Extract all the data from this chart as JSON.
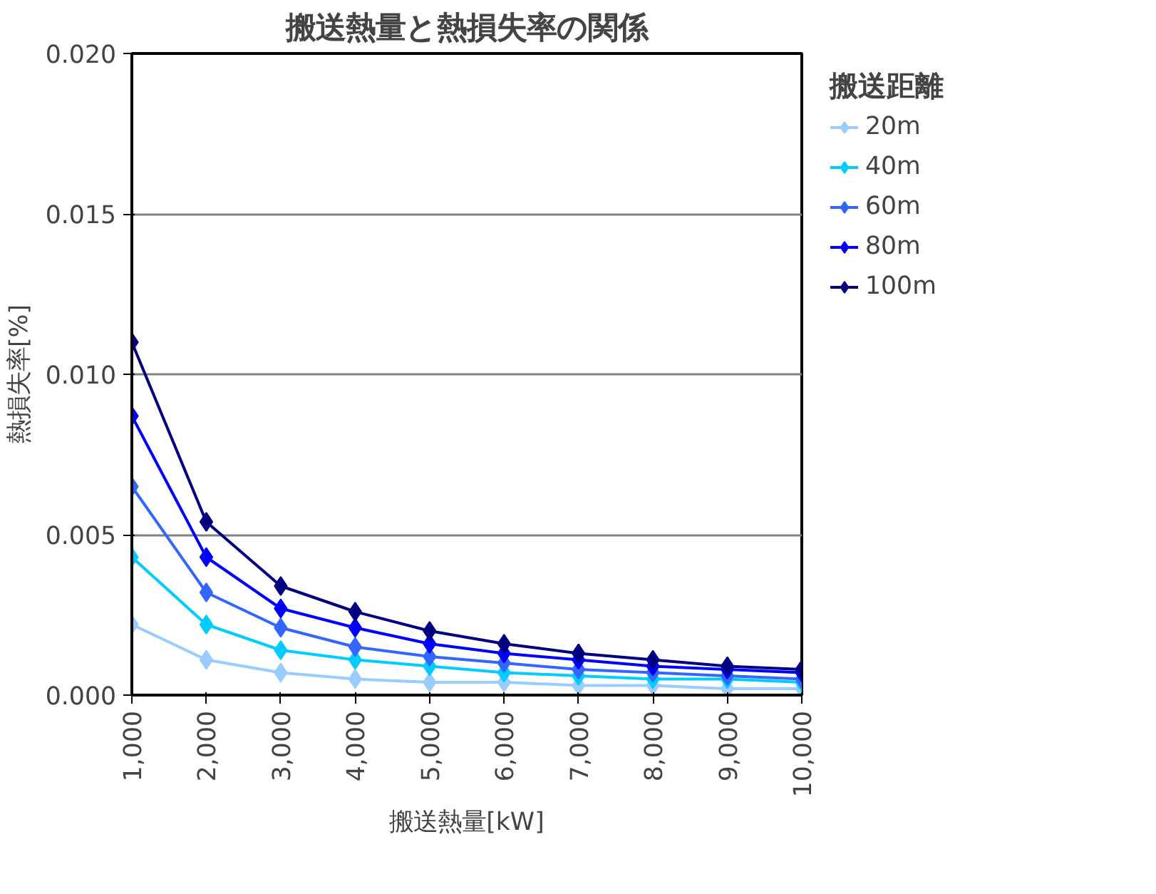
{
  "chart_data": {
    "type": "line",
    "title": "搬送熱量と熱損失率の関係",
    "xlabel": "搬送熱量[kW]",
    "ylabel": "熱損失率[%]",
    "legend_title": "搬送距離",
    "x": [
      1000,
      2000,
      3000,
      4000,
      5000,
      6000,
      7000,
      8000,
      9000,
      10000
    ],
    "xlim": [
      1000,
      10000
    ],
    "xticks": [
      {
        "value": 1000,
        "label": "1,000"
      },
      {
        "value": 2000,
        "label": "2,000"
      },
      {
        "value": 3000,
        "label": "3,000"
      },
      {
        "value": 4000,
        "label": "4,000"
      },
      {
        "value": 5000,
        "label": "5,000"
      },
      {
        "value": 6000,
        "label": "6,000"
      },
      {
        "value": 7000,
        "label": "7,000"
      },
      {
        "value": 8000,
        "label": "8,000"
      },
      {
        "value": 9000,
        "label": "9,000"
      },
      {
        "value": 10000,
        "label": "10,000"
      }
    ],
    "ylim": [
      0,
      0.02
    ],
    "yticks": [
      {
        "value": 0,
        "label": "0.000"
      },
      {
        "value": 0.005,
        "label": "0.005"
      },
      {
        "value": 0.01,
        "label": "0.010"
      },
      {
        "value": 0.015,
        "label": "0.015"
      },
      {
        "value": 0.02,
        "label": "0.020"
      }
    ],
    "grid": "y",
    "legend": "right",
    "marker": "diamond",
    "line_style": "solid",
    "series": [
      {
        "name": "20m",
        "color": "#99ccff",
        "values": [
          0.0022,
          0.0011,
          0.0007,
          0.0005,
          0.0004,
          0.0004,
          0.0003,
          0.0003,
          0.0002,
          0.0002
        ]
      },
      {
        "name": "40m",
        "color": "#00ccff",
        "values": [
          0.0043,
          0.0022,
          0.0014,
          0.0011,
          0.0009,
          0.0007,
          0.0006,
          0.0005,
          0.0005,
          0.0004
        ]
      },
      {
        "name": "60m",
        "color": "#3366ff",
        "values": [
          0.0065,
          0.0032,
          0.0021,
          0.0015,
          0.0012,
          0.001,
          0.0008,
          0.0007,
          0.0006,
          0.0005
        ]
      },
      {
        "name": "80m",
        "color": "#0000ff",
        "values": [
          0.0087,
          0.0043,
          0.0027,
          0.0021,
          0.0016,
          0.0013,
          0.0011,
          0.0009,
          0.0008,
          0.0007
        ]
      },
      {
        "name": "100m",
        "color": "#000080",
        "values": [
          0.011,
          0.0054,
          0.0034,
          0.0026,
          0.002,
          0.0016,
          0.0013,
          0.0011,
          0.0009,
          0.0008
        ]
      }
    ]
  }
}
